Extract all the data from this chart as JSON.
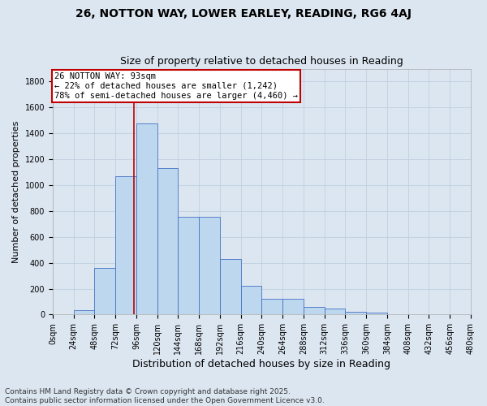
{
  "title1": "26, NOTTON WAY, LOWER EARLEY, READING, RG6 4AJ",
  "title2": "Size of property relative to detached houses in Reading",
  "xlabel": "Distribution of detached houses by size in Reading",
  "ylabel": "Number of detached properties",
  "bar_values": [
    0,
    35,
    360,
    1070,
    1480,
    1130,
    755,
    755,
    430,
    225,
    120,
    120,
    60,
    50,
    20,
    18,
    0,
    0,
    0,
    0
  ],
  "bin_edges": [
    0,
    24,
    48,
    72,
    96,
    120,
    144,
    168,
    192,
    216,
    240,
    264,
    288,
    312,
    336,
    360,
    384,
    408,
    432,
    456,
    480
  ],
  "bar_color": "#bdd7ee",
  "bar_edge_color": "#4472c4",
  "vline_x": 93,
  "vline_color": "#c00000",
  "annotation_text": "26 NOTTON WAY: 93sqm\n← 22% of detached houses are smaller (1,242)\n78% of semi-detached houses are larger (4,460) →",
  "annotation_box_color": "#ffffff",
  "annotation_box_edge_color": "#c00000",
  "ylim": [
    0,
    1900
  ],
  "yticks": [
    0,
    200,
    400,
    600,
    800,
    1000,
    1200,
    1400,
    1600,
    1800
  ],
  "grid_color": "#c0d0e0",
  "bg_color": "#dce6f1",
  "footer_line1": "Contains HM Land Registry data © Crown copyright and database right 2025.",
  "footer_line2": "Contains public sector information licensed under the Open Government Licence v3.0.",
  "title1_fontsize": 10,
  "title2_fontsize": 9,
  "xlabel_fontsize": 9,
  "ylabel_fontsize": 8,
  "tick_fontsize": 7,
  "annotation_fontsize": 7.5,
  "footer_fontsize": 6.5
}
